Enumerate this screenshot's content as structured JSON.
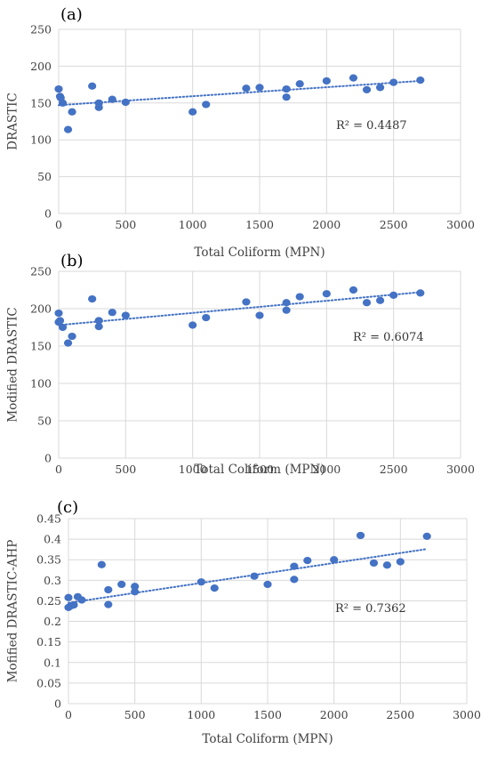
{
  "chart_data": [
    {
      "type": "scatter",
      "panel_label": "(a)",
      "xlabel": "Total Coliform (MPN)",
      "ylabel": "DRASTIC",
      "xlim": [
        0,
        3000
      ],
      "ylim": [
        0,
        250
      ],
      "xticks": [
        "0",
        "500",
        "1000",
        "1500",
        "2000",
        "2500",
        "3000"
      ],
      "yticks": [
        "0",
        "50",
        "100",
        "150",
        "200",
        "250"
      ],
      "grid": true,
      "trendline": {
        "style": "dotted",
        "x": [
          0,
          2700
        ],
        "y": [
          147,
          180
        ]
      },
      "annotation": "R² = 0.4487",
      "series": [
        {
          "x": [
            0,
            10,
            15,
            30,
            70,
            100,
            250,
            300,
            300,
            400,
            500,
            1000,
            1100,
            1400,
            1500,
            1700,
            1700,
            1800,
            2000,
            2200,
            2300,
            2400,
            2500,
            2700
          ],
          "y": [
            169,
            159,
            157,
            150,
            114,
            138,
            173,
            150,
            144,
            155,
            151,
            138,
            148,
            170,
            171,
            158,
            169,
            176,
            180,
            184,
            168,
            171,
            178,
            181
          ]
        }
      ]
    },
    {
      "type": "scatter",
      "panel_label": "(b)",
      "xlabel": "Total Coliform (MPN)",
      "ylabel": "Modified DRASTIC",
      "xlim": [
        0,
        3000
      ],
      "ylim": [
        0,
        250
      ],
      "xticks": [
        "0",
        "500",
        "1000",
        "1500",
        "2000",
        "2500",
        "3000"
      ],
      "yticks": [
        "0",
        "50",
        "100",
        "150",
        "200",
        "250"
      ],
      "grid": true,
      "trendline": {
        "style": "dotted",
        "x": [
          0,
          2700
        ],
        "y": [
          178,
          222
        ]
      },
      "annotation": "R² = 0.6074",
      "series": [
        {
          "x": [
            0,
            0,
            10,
            30,
            70,
            100,
            250,
            300,
            300,
            400,
            500,
            1000,
            1100,
            1400,
            1500,
            1700,
            1700,
            1800,
            2000,
            2200,
            2300,
            2400,
            2500,
            2700
          ],
          "y": [
            194,
            182,
            184,
            175,
            154,
            163,
            213,
            176,
            184,
            195,
            191,
            178,
            188,
            209,
            191,
            198,
            208,
            216,
            220,
            225,
            208,
            211,
            218,
            221
          ]
        }
      ]
    },
    {
      "type": "scatter",
      "panel_label": "(c)",
      "xlabel": "Total Coliform (MPN)",
      "ylabel": "Mofified DRASTIC-AHP",
      "xlim": [
        0,
        3000
      ],
      "ylim": [
        0,
        0.45
      ],
      "xticks": [
        "0",
        "500",
        "1000",
        "1500",
        "2000",
        "2500",
        "3000"
      ],
      "yticks": [
        "0",
        "0.05",
        "0.1",
        "0.15",
        "0.2",
        "0.25",
        "0.3",
        "0.35",
        "0.4",
        "0.45"
      ],
      "grid": true,
      "trendline": {
        "style": "dotted",
        "x": [
          0,
          2700
        ],
        "y": [
          0.245,
          0.376
        ]
      },
      "annotation": "R² = 0.7362",
      "series": [
        {
          "x": [
            0,
            0,
            20,
            40,
            70,
            100,
            250,
            300,
            300,
            400,
            500,
            500,
            1000,
            1100,
            1400,
            1500,
            1700,
            1700,
            1800,
            2000,
            2200,
            2300,
            2400,
            2500,
            2700
          ],
          "y": [
            0.234,
            0.258,
            0.238,
            0.24,
            0.26,
            0.252,
            0.338,
            0.277,
            0.241,
            0.29,
            0.285,
            0.272,
            0.296,
            0.281,
            0.31,
            0.29,
            0.334,
            0.302,
            0.348,
            0.35,
            0.409,
            0.342,
            0.337,
            0.345,
            0.407
          ]
        }
      ]
    }
  ]
}
